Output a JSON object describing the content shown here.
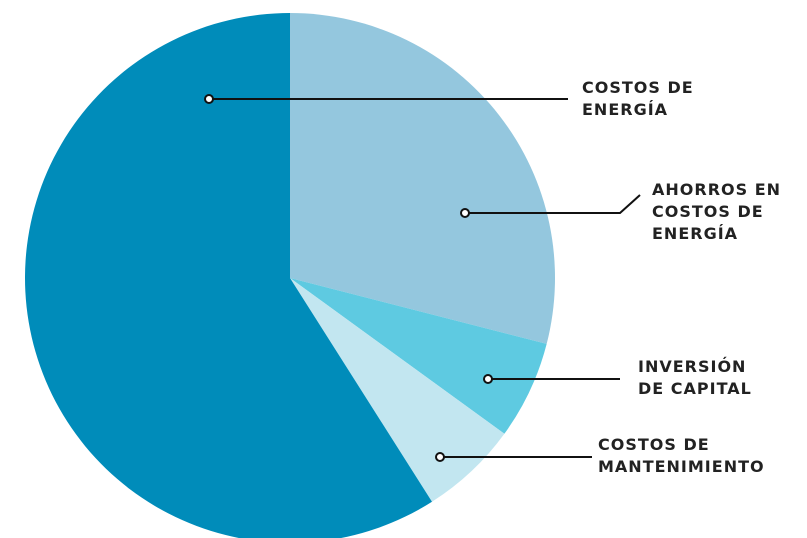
{
  "chart_data": {
    "type": "pie",
    "slices": [
      {
        "label_lines": [
          "AHORROS EN",
          "COSTOS DE",
          "ENERGÍA"
        ],
        "value": 29,
        "color": "#94c7de"
      },
      {
        "label_lines": [
          "INVERSIÓN",
          "DE CAPITAL"
        ],
        "value": 6,
        "color": "#5ecae1"
      },
      {
        "label_lines": [
          "COSTOS DE",
          "MANTENIMIENTO"
        ],
        "value": 6,
        "color": "#c2e6f0"
      },
      {
        "label_lines": [
          "COSTOS DE",
          "ENERGÍA"
        ],
        "value": 59,
        "color": "#008cba"
      }
    ],
    "start_angle": "top",
    "direction": "clockwise",
    "legend": "callout labels on the right"
  }
}
